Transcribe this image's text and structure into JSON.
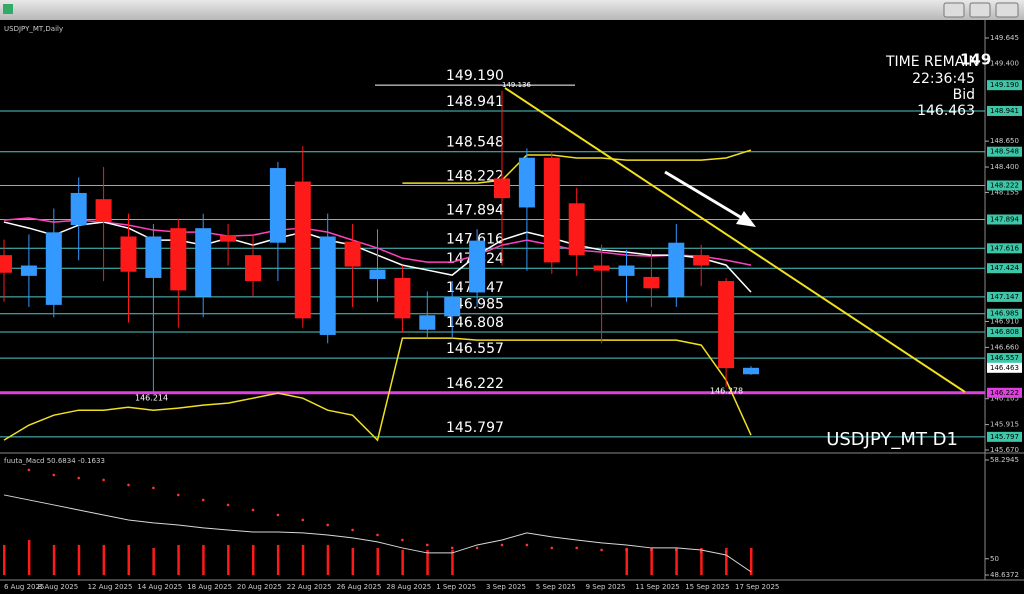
{
  "chart_data": [
    {
      "type": "candlestick",
      "title": "USDJPY_MT,Daily",
      "symbol_label": "USDJPY_MT D1",
      "top_label": "149",
      "timer": {
        "label": "TIME REMAIN",
        "value": "22:36:45"
      },
      "bid_label": "Bid",
      "categories": [
        "6 Aug 2025",
        null,
        "8 Aug 2025",
        null,
        "12 Aug 2025",
        null,
        "14 Aug 2025",
        null,
        "18 Aug 2025",
        null,
        "20 Aug 2025",
        null,
        "22 Aug 2025",
        null,
        "26 Aug 2025",
        null,
        "28 Aug 2025",
        null,
        "1 Sep 2025",
        null,
        "3 Sep 2025",
        null,
        "5 Sep 2025",
        null,
        "9 Sep 2025",
        null,
        "11 Sep 2025",
        null,
        "15 Sep 2025",
        null,
        "17 Sep 2025"
      ],
      "open": [
        147.55,
        147.35,
        147.07,
        147.84,
        148.09,
        147.73,
        147.33,
        147.81,
        147.15,
        147.74,
        147.55,
        147.67,
        148.26,
        146.78,
        147.68,
        147.32,
        147.33,
        146.83,
        146.96,
        147.19,
        148.29,
        148.01,
        148.49,
        148.05,
        147.45,
        147.35,
        147.34,
        147.15,
        147.55,
        147.3,
        146.401
      ],
      "high": [
        147.7,
        147.75,
        148.0,
        148.3,
        148.4,
        147.95,
        147.85,
        147.9,
        147.95,
        147.85,
        147.75,
        148.45,
        148.6,
        147.95,
        147.85,
        147.8,
        147.45,
        147.2,
        147.3,
        147.8,
        149.136,
        148.58,
        148.55,
        148.2,
        147.65,
        147.6,
        147.6,
        147.85,
        147.65,
        147.33,
        146.478
      ],
      "low": [
        147.1,
        147.05,
        146.95,
        147.5,
        147.3,
        146.9,
        146.214,
        146.85,
        146.95,
        147.45,
        147.15,
        147.3,
        146.85,
        146.7,
        147.05,
        147.1,
        146.8,
        146.75,
        146.75,
        147.05,
        147.45,
        147.4,
        147.37,
        147.35,
        146.7,
        147.1,
        147.05,
        147.05,
        147.25,
        146.278,
        146.395
      ],
      "close": [
        147.38,
        147.45,
        147.77,
        148.15,
        147.87,
        147.39,
        147.73,
        147.21,
        147.81,
        147.68,
        147.3,
        148.39,
        146.94,
        147.73,
        147.44,
        147.41,
        146.94,
        146.97,
        147.15,
        147.69,
        148.1,
        148.49,
        147.48,
        147.55,
        147.4,
        147.45,
        147.23,
        147.67,
        147.45,
        146.46,
        146.463
      ],
      "up_color": "#3399ff",
      "down_color": "#ff1a1a",
      "overlays": [
        {
          "color": "#ff40c0",
          "values": [
            147.888,
            147.908,
            147.869,
            147.888,
            147.869,
            147.84,
            147.792,
            147.772,
            147.772,
            147.734,
            147.743,
            147.792,
            147.811,
            147.772,
            147.695,
            147.618,
            147.521,
            147.483,
            147.483,
            147.55,
            147.647,
            147.695,
            147.647,
            147.599,
            147.579,
            147.55,
            147.541,
            147.55,
            147.541,
            147.502,
            147.454
          ]
        },
        {
          "color": "#ffffff",
          "values": [
            147.869,
            147.811,
            147.743,
            147.84,
            147.869,
            147.811,
            147.695,
            147.695,
            147.647,
            147.714,
            147.647,
            147.714,
            147.772,
            147.695,
            147.647,
            147.55,
            147.454,
            147.406,
            147.357,
            147.55,
            147.695,
            147.772,
            147.714,
            147.647,
            147.599,
            147.579,
            147.55,
            147.55,
            147.521,
            147.454,
            147.193
          ]
        },
        {
          "color": "#f0e020",
          "values": [
            null,
            null,
            null,
            null,
            null,
            null,
            null,
            null,
            null,
            null,
            null,
            null,
            null,
            null,
            null,
            null,
            148.245,
            148.245,
            148.245,
            148.245,
            148.274,
            148.516,
            148.516,
            148.487,
            148.487,
            148.467,
            148.467,
            148.467,
            148.467,
            148.487,
            148.564
          ]
        },
        {
          "color": "#f0e020",
          "values": [
            145.765,
            145.91,
            146.006,
            146.054,
            146.054,
            146.083,
            146.054,
            146.074,
            146.103,
            146.122,
            146.17,
            146.219,
            146.17,
            146.054,
            146.006,
            145.765,
            146.749,
            146.749,
            146.749,
            146.73,
            146.73,
            146.73,
            146.73,
            146.73,
            146.73,
            146.73,
            146.73,
            146.73,
            146.682,
            146.344,
            145.813
          ]
        }
      ],
      "levels": [
        {
          "value": 149.19,
          "label": "149.190"
        },
        148.941,
        148.548,
        148.222,
        147.894,
        147.616,
        147.424,
        147.147,
        146.985,
        146.808,
        146.557,
        146.222,
        145.797
      ],
      "level_colors": [
        "#ffffff",
        "#4fc8c8",
        "#4fc8c8",
        "#4fc8c8",
        "#4fc8c8",
        "#4fc8c8",
        "#4fc8c8",
        "#4fc8c8",
        "#4fc8c8",
        "#4fc8c8",
        "#4fc8c8",
        "#e040e0",
        "#4fc8c8"
      ],
      "ylim": [
        145.67,
        149.645
      ],
      "yticks": [
        149.645,
        {
          "value": 149.4,
          "label": "149.400"
        },
        {
          "value": 148.65,
          "label": "148.650"
        },
        {
          "value": 148.4,
          "label": "148.400"
        },
        148.155,
        {
          "value": 146.91,
          "label": "146.910"
        },
        {
          "value": 146.66,
          "label": "146.660"
        },
        146.165,
        145.915,
        {
          "value": 145.67,
          "label": "145.670"
        }
      ]
    },
    {
      "type": "macd",
      "title": "fuuta_Macd 50.6834 -0.1633",
      "histogram": {
        "color": "#ff1a1a",
        "values": [
          51.16,
          51.58,
          51.16,
          51.16,
          51.16,
          51.16,
          50.91,
          51.16,
          51.16,
          51.16,
          51.16,
          51.16,
          51.16,
          51.16,
          50.91,
          50.91,
          50.74,
          50.74,
          50.74,
          null,
          null,
          null,
          null,
          null,
          null,
          50.91,
          50.91,
          50.91,
          50.91,
          50.91,
          50.91
        ]
      },
      "line": {
        "color": "#d8d8d8",
        "values": [
          55.36,
          54.94,
          54.52,
          54.1,
          53.68,
          53.26,
          53.01,
          52.84,
          52.59,
          52.42,
          52.25,
          52.25,
          52.17,
          52.0,
          51.75,
          51.42,
          50.91,
          50.49,
          50.49,
          51.16,
          51.58,
          52.17,
          51.84,
          51.58,
          51.33,
          51.16,
          50.91,
          50.91,
          50.74,
          50.32,
          48.9
        ]
      },
      "signal": {
        "color": "#ff3333",
        "values": [
          null,
          57.46,
          57.04,
          56.78,
          56.62,
          56.2,
          55.95,
          55.36,
          54.94,
          54.52,
          54.1,
          53.68,
          53.26,
          52.84,
          52.42,
          52.0,
          51.58,
          51.16,
          50.91,
          50.91,
          51.16,
          51.16,
          50.91,
          50.91,
          50.74,
          50.74,
          50.74,
          50.74,
          50.58,
          50.58,
          null
        ]
      },
      "ylim": [
        48.6372,
        58.2945
      ],
      "yticks": [
        58.2945,
        50,
        48.6372
      ]
    }
  ]
}
